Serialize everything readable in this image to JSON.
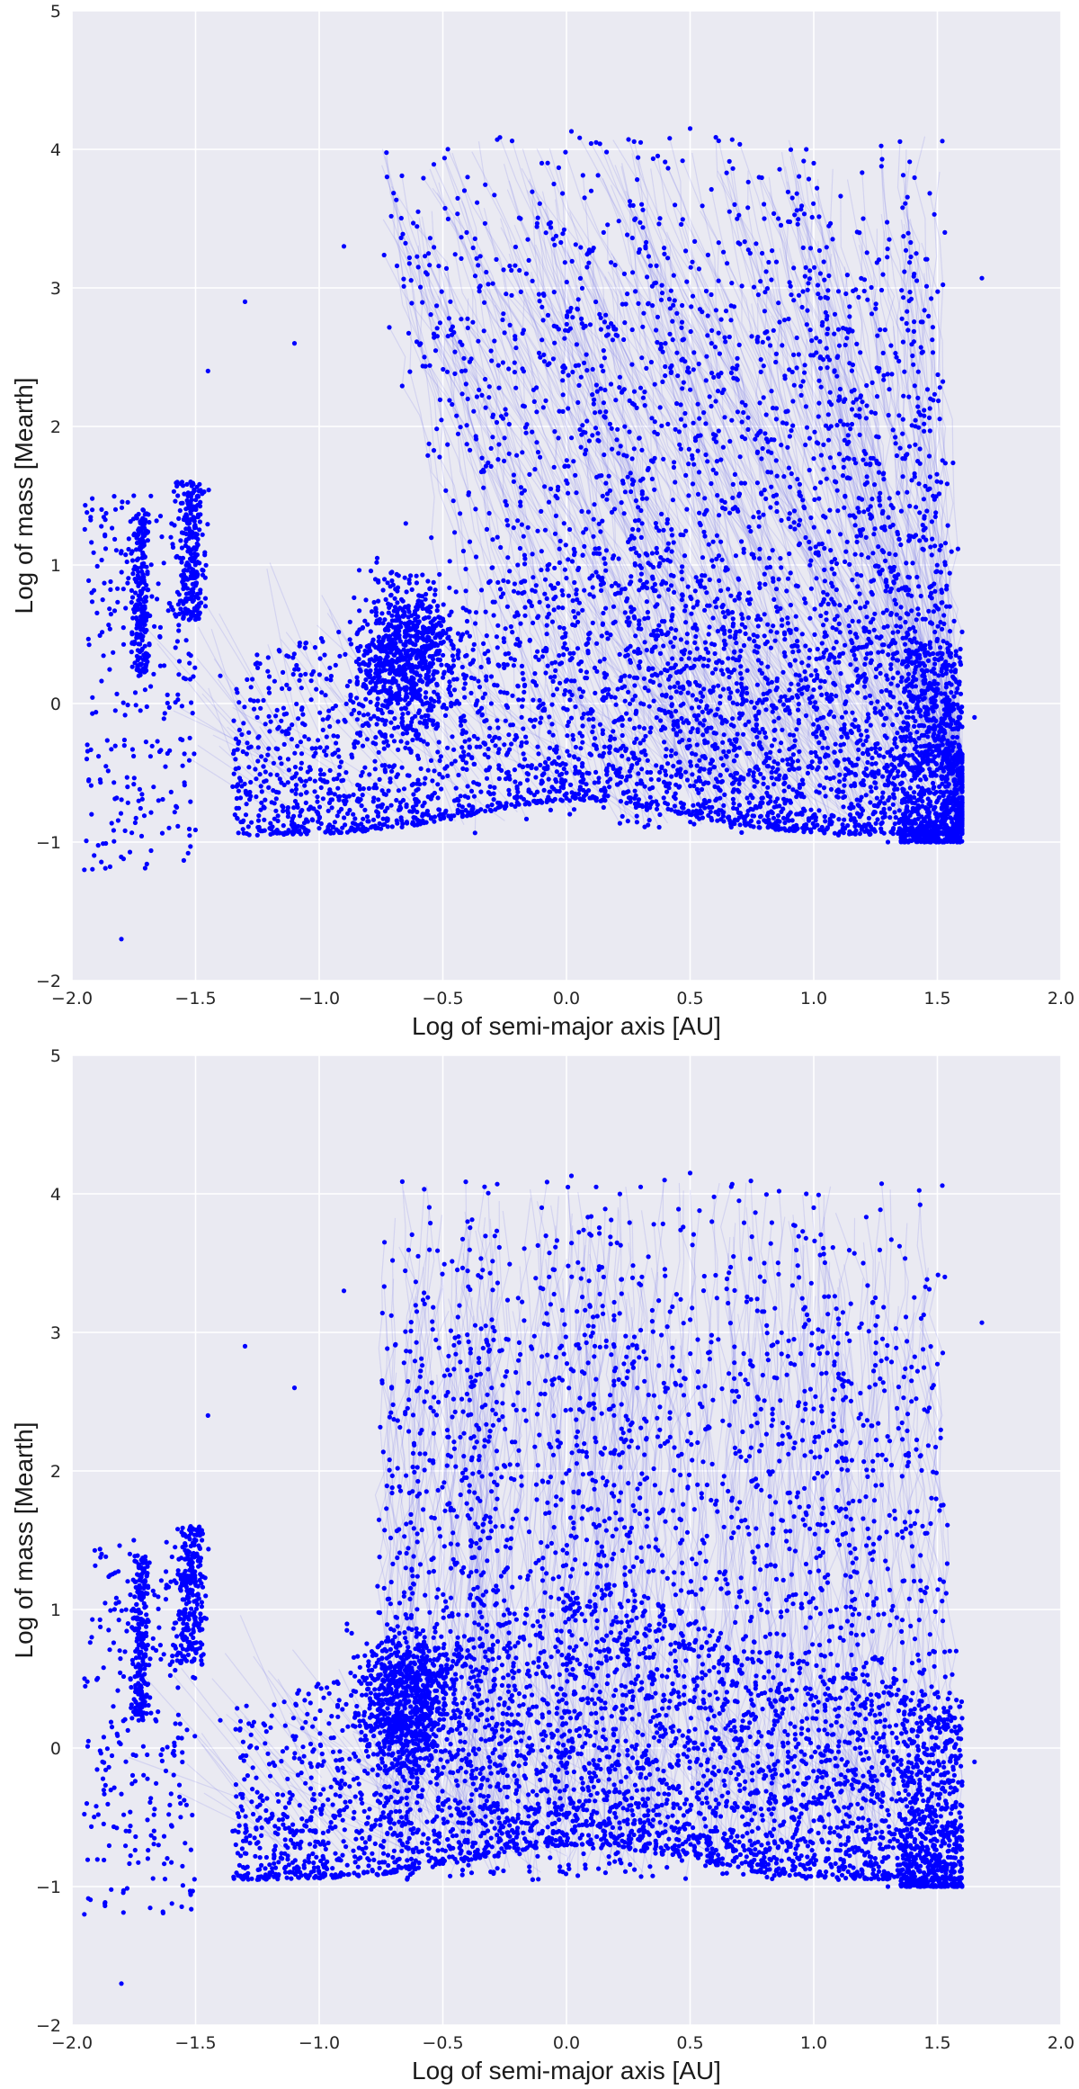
{
  "figure": {
    "background": "#EAEAF2",
    "grid_color": "#FFFFFF",
    "point_color": "#0000FF",
    "line_color": "#7070E8"
  },
  "chart_data": [
    {
      "type": "scatter",
      "title": "",
      "xlabel": "Log of semi-major axis [AU]",
      "ylabel": "Log of mass [Mearth]",
      "xlim": [
        -2.0,
        2.0
      ],
      "ylim": [
        -2,
        5
      ],
      "xticks": [
        "−2.0",
        "−1.5",
        "−1.0",
        "−0.5",
        "0.0",
        "0.5",
        "1.0",
        "1.5",
        "2.0"
      ],
      "yticks": [
        "−2",
        "−1",
        "0",
        "1",
        "2",
        "3",
        "4",
        "5"
      ],
      "grid": true,
      "series": [
        {
          "marker_color": "#0000FF",
          "connected_tracks": true,
          "track_direction": "inward (semi-major axis decreases as mass grows)",
          "points": [
            [
              -1.95,
              -1.2
            ],
            [
              -1.94,
              -0.4
            ],
            [
              -1.92,
              0.8
            ],
            [
              -1.88,
              1.4
            ],
            [
              -1.8,
              -1.7
            ],
            [
              -1.75,
              1.5
            ],
            [
              -1.73,
              0.2
            ],
            [
              -1.72,
              1.3
            ],
            [
              -1.7,
              0.6
            ],
            [
              -1.65,
              -0.7
            ],
            [
              -1.6,
              1.2
            ],
            [
              -1.55,
              0.9
            ],
            [
              -1.52,
              1.6
            ],
            [
              -1.5,
              1.2
            ],
            [
              -1.45,
              2.4
            ],
            [
              -1.4,
              0.2
            ],
            [
              -1.35,
              -0.6
            ],
            [
              -1.3,
              2.9
            ],
            [
              -1.25,
              -0.95
            ],
            [
              -1.2,
              -0.9
            ],
            [
              -1.1,
              2.6
            ],
            [
              -1.0,
              -0.9
            ],
            [
              -0.9,
              3.3
            ],
            [
              -0.8,
              -0.85
            ],
            [
              -0.7,
              0.5
            ],
            [
              -0.65,
              1.3
            ],
            [
              -0.6,
              3.55
            ],
            [
              -0.5,
              -0.8
            ],
            [
              -0.4,
              3.8
            ],
            [
              -0.28,
              4.07
            ],
            [
              -0.2,
              -0.6
            ],
            [
              -0.1,
              3.9
            ],
            [
              0.0,
              -0.5
            ],
            [
              0.02,
              4.13
            ],
            [
              0.1,
              3.7
            ],
            [
              0.12,
              4.05
            ],
            [
              0.15,
              3.4
            ],
            [
              0.2,
              -0.5
            ],
            [
              0.3,
              4.05
            ],
            [
              0.4,
              2.6
            ],
            [
              0.5,
              4.15
            ],
            [
              0.6,
              -0.6
            ],
            [
              0.67,
              4.07
            ],
            [
              0.8,
              3.5
            ],
            [
              0.9,
              -0.8
            ],
            [
              0.97,
              4.0
            ],
            [
              1.0,
              3.9
            ],
            [
              1.1,
              -0.95
            ],
            [
              1.1,
              2.7
            ],
            [
              1.2,
              3.5
            ],
            [
              1.25,
              2.85
            ],
            [
              1.3,
              -1.0
            ],
            [
              1.4,
              -0.9
            ],
            [
              1.52,
              4.06
            ],
            [
              1.53,
              3.4
            ],
            [
              1.55,
              0.7
            ],
            [
              1.58,
              -1.0
            ],
            [
              1.6,
              -0.6
            ],
            [
              1.65,
              -0.1
            ],
            [
              1.68,
              3.07
            ]
          ]
        }
      ]
    },
    {
      "type": "scatter",
      "title": "",
      "xlabel": "Log of semi-major axis [AU]",
      "ylabel": "Log of mass [Mearth]",
      "xlim": [
        -2.0,
        2.0
      ],
      "ylim": [
        -2,
        5
      ],
      "xticks": [
        "−2.0",
        "−1.5",
        "−1.0",
        "−0.5",
        "0.0",
        "0.5",
        "1.0",
        "1.5",
        "2.0"
      ],
      "yticks": [
        "−2",
        "−1",
        "0",
        "1",
        "2",
        "3",
        "4",
        "5"
      ],
      "grid": true,
      "series": [
        {
          "marker_color": "#0000FF",
          "connected_tracks": true,
          "track_direction": "near-vertical (mass grows at roughly constant semi-major axis)",
          "points": [
            [
              -1.95,
              -1.2
            ],
            [
              -1.94,
              -0.4
            ],
            [
              -1.92,
              0.8
            ],
            [
              -1.88,
              1.4
            ],
            [
              -1.8,
              -1.7
            ],
            [
              -1.75,
              1.5
            ],
            [
              -1.73,
              0.2
            ],
            [
              -1.72,
              1.3
            ],
            [
              -1.7,
              0.6
            ],
            [
              -1.65,
              -0.7
            ],
            [
              -1.6,
              1.2
            ],
            [
              -1.55,
              0.9
            ],
            [
              -1.52,
              1.6
            ],
            [
              -1.5,
              1.2
            ],
            [
              -1.45,
              2.4
            ],
            [
              -1.4,
              0.2
            ],
            [
              -1.35,
              -0.6
            ],
            [
              -1.3,
              2.9
            ],
            [
              -1.25,
              -0.95
            ],
            [
              -1.2,
              -0.9
            ],
            [
              -1.1,
              2.6
            ],
            [
              -1.0,
              -0.9
            ],
            [
              -0.9,
              3.3
            ],
            [
              -0.8,
              -0.85
            ],
            [
              -0.7,
              0.5
            ],
            [
              -0.65,
              1.3
            ],
            [
              -0.6,
              3.55
            ],
            [
              -0.5,
              -0.8
            ],
            [
              -0.4,
              3.8
            ],
            [
              -0.28,
              4.07
            ],
            [
              -0.2,
              -0.6
            ],
            [
              -0.1,
              3.9
            ],
            [
              0.0,
              -0.5
            ],
            [
              0.02,
              4.13
            ],
            [
              0.1,
              3.7
            ],
            [
              0.12,
              4.05
            ],
            [
              0.15,
              3.4
            ],
            [
              0.2,
              -0.5
            ],
            [
              0.3,
              4.05
            ],
            [
              0.4,
              2.6
            ],
            [
              0.5,
              4.15
            ],
            [
              0.6,
              -0.6
            ],
            [
              0.67,
              4.07
            ],
            [
              0.8,
              3.5
            ],
            [
              0.9,
              -0.8
            ],
            [
              0.97,
              4.0
            ],
            [
              1.0,
              3.9
            ],
            [
              1.1,
              -0.95
            ],
            [
              1.1,
              2.7
            ],
            [
              1.2,
              3.5
            ],
            [
              1.25,
              2.85
            ],
            [
              1.3,
              -1.0
            ],
            [
              1.4,
              -0.9
            ],
            [
              1.52,
              4.06
            ],
            [
              1.53,
              3.4
            ],
            [
              1.55,
              0.7
            ],
            [
              1.58,
              -1.0
            ],
            [
              1.6,
              -0.6
            ],
            [
              1.65,
              -0.1
            ],
            [
              1.68,
              3.07
            ]
          ]
        }
      ]
    }
  ]
}
